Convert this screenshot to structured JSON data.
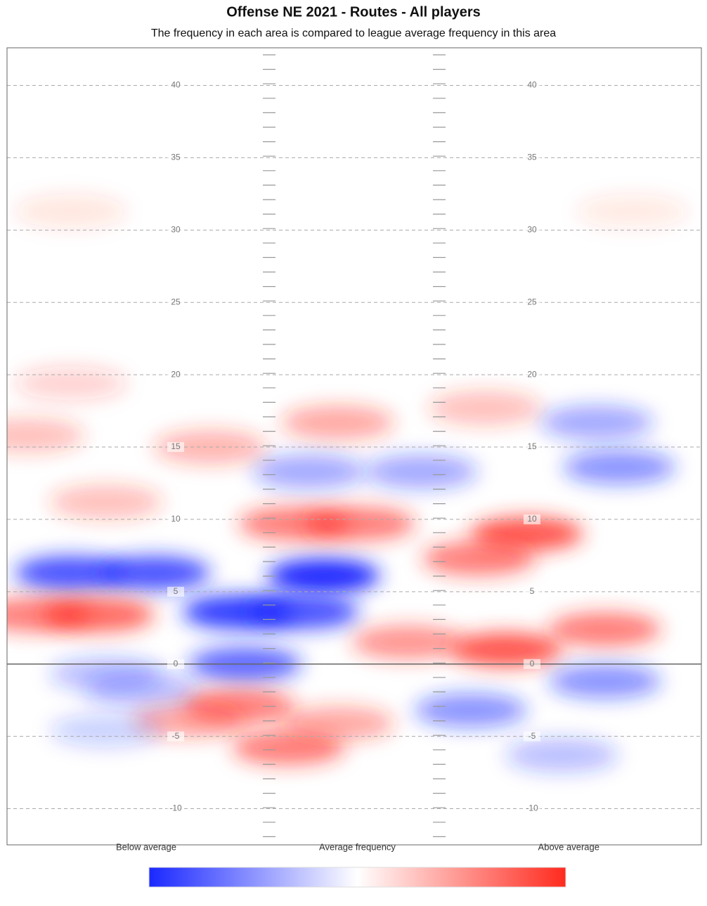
{
  "chart_data": {
    "type": "heatmap",
    "title": "Offense NE 2021 - Routes - All players",
    "subtitle": "The frequency in each area is compared to league average frequency in this area",
    "x": [
      4.9,
      11.3,
      24.3,
      17.8,
      22.7,
      18.3,
      2.2,
      7.0,
      22.1,
      27.0,
      39.9,
      36.2,
      30.8,
      38.3,
      45.9,
      17.8,
      21.6,
      25.4,
      14.0,
      25.4,
      36.7,
      23.2,
      31.8,
      47.0,
      45.3,
      35.6,
      45.9,
      42.6,
      7.6,
      1.6,
      7.6,
      15.6,
      4.9,
      4.9,
      48.0,
      10.3,
      7.6
    ],
    "y": [
      6.3,
      6.3,
      6.1,
      3.6,
      3.6,
      0,
      3.4,
      3.4,
      9.7,
      9.7,
      9.0,
      7.3,
      1.5,
      1.0,
      2.4,
      -2.9,
      -5.8,
      -4.1,
      -3.9,
      16.7,
      17.7,
      13.3,
      13.3,
      13.6,
      16.7,
      -3.2,
      -1.2,
      -6.3,
      -0.7,
      15.8,
      11.2,
      15.0,
      31.3,
      19.4,
      31.3,
      -1.7,
      -4.6
    ],
    "values": [
      -0.8,
      -0.8,
      -1,
      -0.9,
      -0.8,
      -0.7,
      0.6,
      0.7,
      0.6,
      0.6,
      0.8,
      0.6,
      0.5,
      0.8,
      0.6,
      0.6,
      0.6,
      0.4,
      0.4,
      0.4,
      0.3,
      -0.4,
      -0.4,
      -0.5,
      -0.4,
      -0.5,
      -0.5,
      -0.3,
      -0.3,
      0.3,
      0.3,
      0.35,
      0.12,
      0.2,
      0.1,
      -0.3,
      -0.2
    ],
    "xlim": [
      0,
      53.3
    ],
    "ylim": [
      -12.5,
      42.6
    ],
    "yticks": [
      -10,
      -5,
      0,
      5,
      10,
      15,
      20,
      25,
      30,
      35,
      40
    ],
    "colors": {
      "low": "#1a28ff",
      "mid": "#ffffff",
      "high": "#ff2a1e"
    },
    "colorbar_lim": [
      -1,
      1
    ],
    "colorbar_ticks": [
      {
        "value": -1,
        "label": "Below average"
      },
      {
        "value": 0,
        "label": "Average frequency"
      },
      {
        "value": 1,
        "label": "Above average"
      }
    ]
  }
}
